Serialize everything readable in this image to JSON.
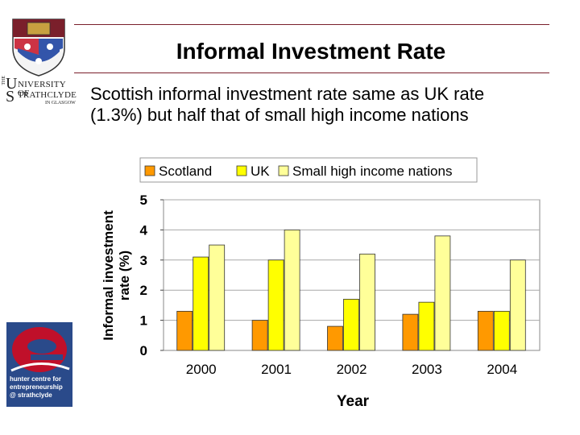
{
  "slide": {
    "title": "Informal Investment Rate",
    "subtitle_line1": "Scottish informal investment rate same as UK rate",
    "subtitle_line2": "(1.3%) but half that of small high income nations"
  },
  "logos": {
    "university": {
      "the": "THE",
      "u": "U",
      "line1": "NIVERSITY OF",
      "s": "S",
      "line2": "TRATHCLYDE",
      "line3": "IN GLASGOW"
    },
    "hunter": {
      "line1": "hunter centre for",
      "line2": "entrepreneurship",
      "line3": "@ strathclyde"
    }
  },
  "chart_data": {
    "type": "bar",
    "categories": [
      "2000",
      "2001",
      "2002",
      "2003",
      "2004"
    ],
    "series": [
      {
        "name": "Scotland",
        "color": "#ff9900",
        "values": [
          1.3,
          1.0,
          0.8,
          1.2,
          1.3
        ]
      },
      {
        "name": "UK",
        "color": "#ffff00",
        "values": [
          3.1,
          3.0,
          1.7,
          1.6,
          1.3
        ]
      },
      {
        "name": "Small high income nations",
        "color": "#ffff99",
        "values": [
          3.5,
          4.0,
          3.2,
          3.8,
          3.0
        ]
      }
    ],
    "xlabel": "Year",
    "ylabel_line1": "Informal investment",
    "ylabel_line2": "rate (%)",
    "ylim": [
      0,
      5
    ],
    "yticks": [
      "0",
      "1",
      "2",
      "3",
      "4",
      "5"
    ],
    "grid": true,
    "legend_position": "top"
  }
}
